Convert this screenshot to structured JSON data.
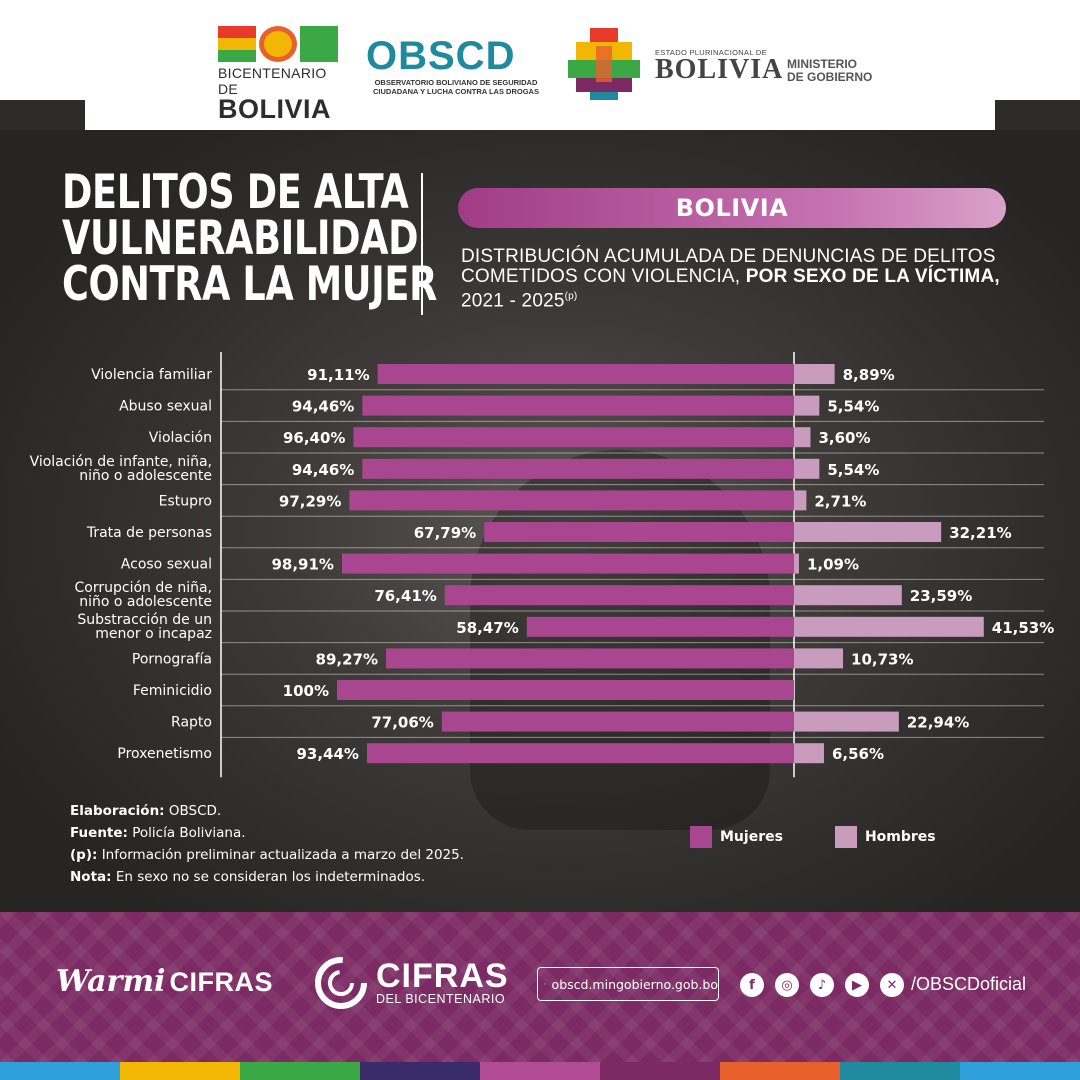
{
  "header": {
    "bicentenario_line1": "BICENTENARIO DE",
    "bicentenario_line2": "BOLIVIA",
    "obscd_name": "OBSCD",
    "obscd_full_line1": "OBSERVATORIO BOLIVIANO DE SEGURIDAD",
    "obscd_full_line2": "CIUDADANA Y LUCHA CONTRA LAS DROGAS",
    "estado_small": "ESTADO PLURINACIONAL DE",
    "estado_big": "BOLIVIA",
    "ministerio_line1": "MINISTERIO",
    "ministerio_line2": "DE GOBIERNO"
  },
  "title": {
    "line1": "DELITOS DE ALTA",
    "line2": "VULNERABILIDAD",
    "line3": "CONTRA LA MUJER"
  },
  "region_label": "BOLIVIA",
  "subtitle": {
    "part1": "DISTRIBUCIÓN ACUMULADA DE DENUNCIAS DE DELITOS COMETIDOS CON VIOLENCIA, ",
    "part2_bold": "POR SEXO DE LA VÍCTIMA,",
    "part3": "2021 - 2025",
    "superscript": "(p)"
  },
  "colors": {
    "mujeres": "#a8478f",
    "hombres": "#c99bbd",
    "accent": "#b04b94",
    "footer": "#7b2a63"
  },
  "chart_data": {
    "type": "bar",
    "orientation": "horizontal-diverging",
    "categories": [
      "Violencia familiar",
      "Abuso sexual",
      "Violación",
      "Violación de infante, niña,|niño o adolescente",
      "Estupro",
      "Trata de personas",
      "Acoso sexual",
      "Corrupción de niña,|niño o adolescente",
      "Substracción de un|menor o incapaz",
      "Pornografía",
      "Feminicidio",
      "Rapto",
      "Proxenetismo"
    ],
    "series": [
      {
        "name": "Mujeres",
        "values": [
          91.11,
          94.46,
          96.4,
          94.46,
          97.29,
          67.79,
          98.91,
          76.41,
          58.47,
          89.27,
          100,
          77.06,
          93.44
        ],
        "labels": [
          "91,11%",
          "94,46%",
          "96,40%",
          "94,46%",
          "97,29%",
          "67,79%",
          "98,91%",
          "76,41%",
          "58,47%",
          "89,27%",
          "100%",
          "77,06%",
          "93,44%"
        ]
      },
      {
        "name": "Hombres",
        "values": [
          8.89,
          5.54,
          3.6,
          5.54,
          2.71,
          32.21,
          1.09,
          23.59,
          41.53,
          10.73,
          0,
          22.94,
          6.56
        ],
        "labels": [
          "8,89%",
          "5,54%",
          "3,60%",
          "5,54%",
          "2,71%",
          "32,21%",
          "1,09%",
          "23,59%",
          "41,53%",
          "10,73%",
          "",
          "22,94%",
          "6,56%"
        ]
      }
    ]
  },
  "notes": {
    "elaboracion_label": "Elaboración:",
    "elaboracion_value": " OBSCD.",
    "fuente_label": "Fuente:",
    "fuente_value": " Policía Boliviana.",
    "p_label": "(p):",
    "p_value": " Información preliminar actualizada a marzo del 2025.",
    "nota_label": "Nota:",
    "nota_value": " En sexo no se consideran los indeterminados."
  },
  "legend": {
    "mujeres": "Mujeres",
    "hombres": "Hombres"
  },
  "footer": {
    "warmi_script": "Warmi",
    "warmi_bold": "CIFRAS",
    "cifras_big": "CIFRAS",
    "cifras_small": "DEL BICENTENARIO",
    "website": "obscd.mingobierno.gob.bo",
    "social_icons": [
      "facebook-icon",
      "instagram-icon",
      "tiktok-icon",
      "youtube-icon",
      "x-icon"
    ],
    "handle": "/OBSCDoficial"
  },
  "stripe_colors": [
    "#2e9fd8",
    "#f2b705",
    "#3aa845",
    "#3a2b6b",
    "#b04b94",
    "#7b2a63",
    "#e8602c",
    "#1f8a9e",
    "#2e9fd8"
  ]
}
